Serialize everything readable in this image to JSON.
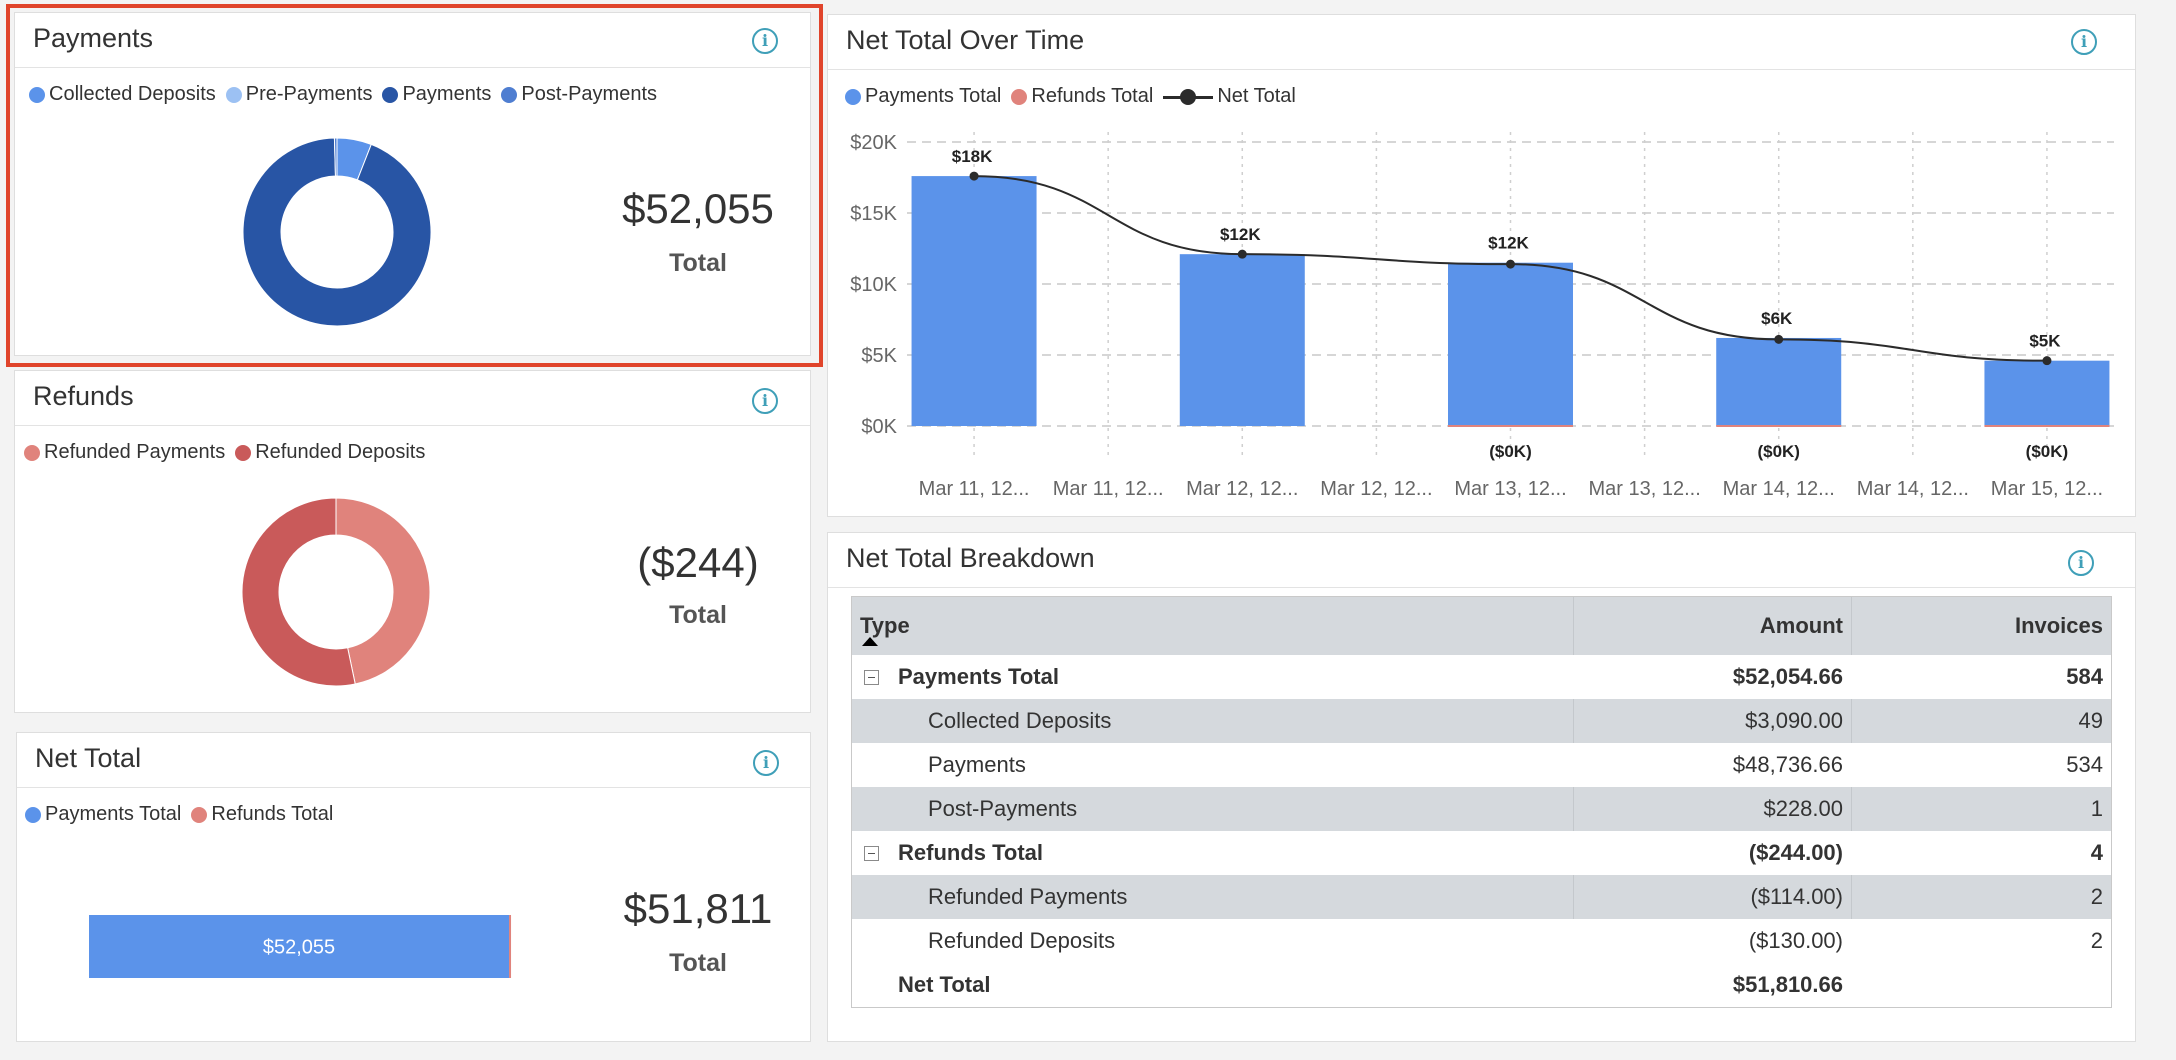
{
  "payments": {
    "title": "Payments",
    "legend": [
      {
        "label": "Collected Deposits",
        "color": "#5b93ea"
      },
      {
        "label": "Pre-Payments",
        "color": "#9cc1f3"
      },
      {
        "label": "Payments",
        "color": "#2855a5"
      },
      {
        "label": "Post-Payments",
        "color": "#4f7ed1"
      }
    ],
    "total_value": "$52,055",
    "total_label": "Total"
  },
  "refunds": {
    "title": "Refunds",
    "legend": [
      {
        "label": "Refunded Payments",
        "color": "#e0837c"
      },
      {
        "label": "Refunded Deposits",
        "color": "#c95a5a"
      }
    ],
    "total_value": "($244)",
    "total_label": "Total"
  },
  "net_total": {
    "title": "Net Total",
    "legend": [
      {
        "label": "Payments Total",
        "color": "#5b93ea"
      },
      {
        "label": "Refunds Total",
        "color": "#e0837c"
      }
    ],
    "bar_label": "$52,055",
    "total_value": "$51,811",
    "total_label": "Total"
  },
  "over_time": {
    "title": "Net Total Over Time",
    "legend": [
      {
        "label": "Payments Total",
        "color": "#5b93ea",
        "kind": "dot"
      },
      {
        "label": "Refunds Total",
        "color": "#e0837c",
        "kind": "dot"
      },
      {
        "label": "Net Total",
        "color": "#2b2b2b",
        "kind": "line"
      }
    ]
  },
  "breakdown": {
    "title": "Net Total Breakdown",
    "columns": {
      "type": "Type",
      "amount": "Amount",
      "invoices": "Invoices"
    },
    "rows": [
      {
        "type": "Payments Total",
        "amount": "$52,054.66",
        "invoices": "584",
        "level": 0,
        "bold": true,
        "collapsible": true
      },
      {
        "type": "Collected Deposits",
        "amount": "$3,090.00",
        "invoices": "49",
        "level": 1
      },
      {
        "type": "Payments",
        "amount": "$48,736.66",
        "invoices": "534",
        "level": 1
      },
      {
        "type": "Post-Payments",
        "amount": "$228.00",
        "invoices": "1",
        "level": 1
      },
      {
        "type": "Refunds Total",
        "amount": "($244.00)",
        "invoices": "4",
        "level": 0,
        "bold": true,
        "collapsible": true
      },
      {
        "type": "Refunded Payments",
        "amount": "($114.00)",
        "invoices": "2",
        "level": 1
      },
      {
        "type": "Refunded Deposits",
        "amount": "($130.00)",
        "invoices": "2",
        "level": 1
      },
      {
        "type": "Net Total",
        "amount": "$51,810.66",
        "invoices": "",
        "level": 0,
        "bold": true
      }
    ]
  },
  "chart_data": [
    {
      "type": "pie",
      "title": "Payments",
      "donut": true,
      "categories": [
        "Collected Deposits",
        "Pre-Payments",
        "Payments",
        "Post-Payments"
      ],
      "values": [
        3090.0,
        0,
        48736.66,
        228.0
      ],
      "colors": [
        "#5b93ea",
        "#9cc1f3",
        "#2855a5",
        "#4f7ed1"
      ]
    },
    {
      "type": "pie",
      "title": "Refunds",
      "donut": true,
      "categories": [
        "Refunded Payments",
        "Refunded Deposits"
      ],
      "values": [
        114.0,
        130.0
      ],
      "colors": [
        "#e0837c",
        "#c95a5a"
      ]
    },
    {
      "type": "bar",
      "title": "Net Total",
      "orientation": "horizontal",
      "stacked": true,
      "series": [
        {
          "name": "Payments Total",
          "values": [
            52054.66
          ],
          "color": "#5b93ea"
        },
        {
          "name": "Refunds Total",
          "values": [
            244.0
          ],
          "color": "#e0837c"
        }
      ]
    },
    {
      "type": "bar",
      "title": "Net Total Over Time",
      "categories": [
        "Mar 11, 12...",
        "Mar 11, 12...",
        "Mar 12, 12...",
        "Mar 12, 12...",
        "Mar 13, 12...",
        "Mar 13, 12...",
        "Mar 14, 12...",
        "Mar 14, 12...",
        "Mar 15, 12..."
      ],
      "ylim": [
        0,
        20000
      ],
      "yticks": [
        0,
        5000,
        10000,
        15000,
        20000
      ],
      "yticklabels": [
        "$0K",
        "$5K",
        "$10K",
        "$15K",
        "$20K"
      ],
      "grid": true,
      "legend_position": "top-left",
      "series": [
        {
          "name": "Payments Total",
          "type": "bar",
          "color": "#5b93ea",
          "values": [
            17600,
            null,
            12100,
            null,
            11500,
            null,
            6200,
            null,
            4600
          ],
          "labels": [
            "$18K",
            "",
            "$12K",
            "",
            "$12K",
            "",
            "$6K",
            "",
            "$5K"
          ]
        },
        {
          "name": "Refunds Total",
          "type": "bar",
          "color": "#e0837c",
          "values": [
            0,
            null,
            0,
            null,
            100,
            null,
            100,
            null,
            20
          ],
          "labels": [
            "",
            "",
            "",
            "",
            "($0K)",
            "",
            "($0K)",
            "",
            "($0K)"
          ]
        },
        {
          "name": "Net Total",
          "type": "line",
          "color": "#2b2b2b",
          "values": [
            17600,
            null,
            12100,
            null,
            11400,
            null,
            6100,
            null,
            4600
          ]
        }
      ]
    }
  ]
}
